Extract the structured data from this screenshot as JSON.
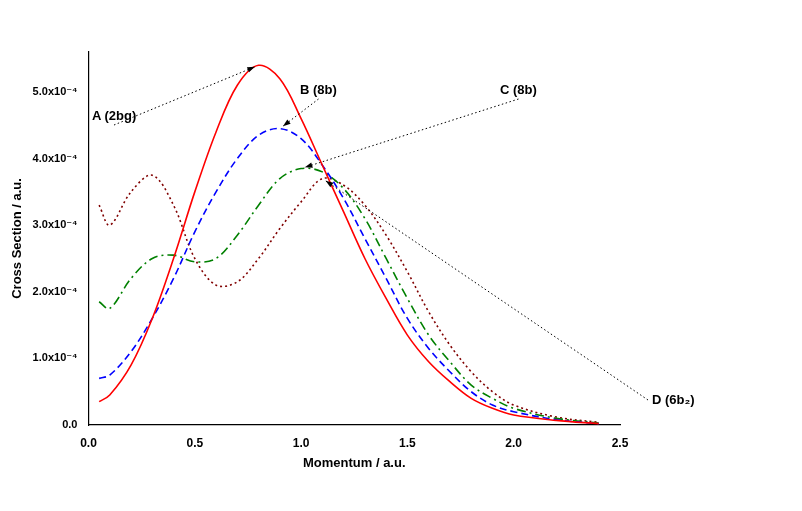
{
  "chart_data": {
    "type": "line",
    "x_label": "Momentum / a.u.",
    "y_label": "Cross Section / a.u.",
    "x": [
      0.05,
      0.1,
      0.2,
      0.3,
      0.4,
      0.5,
      0.6,
      0.7,
      0.8,
      0.9,
      1.0,
      1.1,
      1.2,
      1.3,
      1.4,
      1.5,
      1.6,
      1.7,
      1.8,
      1.9,
      2.0,
      2.2,
      2.4
    ],
    "series": [
      {
        "name": "A (2bg)",
        "color": "#ff0000",
        "line_style": "solid",
        "values": [
          3.5e-05,
          4.5e-05,
          9e-05,
          0.00016,
          0.00025,
          0.00035,
          0.00044,
          0.00051,
          0.00054,
          0.00052,
          0.00046,
          0.00039,
          0.00032,
          0.00025,
          0.00019,
          0.000135,
          9.5e-05,
          6.5e-05,
          4e-05,
          2.5e-05,
          1.5e-05,
          7e-06,
          2e-06
        ]
      },
      {
        "name": "B (8b)",
        "color": "#0000ff",
        "line_style": "dashed",
        "values": [
          7e-05,
          7.5e-05,
          0.00011,
          0.00016,
          0.00022,
          0.00029,
          0.00035,
          0.0004,
          0.000435,
          0.000445,
          0.00043,
          0.00039,
          0.00034,
          0.00028,
          0.00022,
          0.00016,
          0.000115,
          8e-05,
          5e-05,
          3e-05,
          2e-05,
          8e-06,
          2e-06
        ]
      },
      {
        "name": "C (8b)",
        "color": "#008000",
        "line_style": "dashdot",
        "values": [
          0.000185,
          0.000175,
          0.00022,
          0.00025,
          0.000255,
          0.000245,
          0.00025,
          0.000285,
          0.00033,
          0.00037,
          0.000385,
          0.00038,
          0.000355,
          0.00031,
          0.00025,
          0.00019,
          0.000135,
          9.5e-05,
          6e-05,
          4e-05,
          2.5e-05,
          1e-05,
          3e-06
        ]
      },
      {
        "name": "D (6b₂)",
        "color": "#800000",
        "line_style": "dotted",
        "values": [
          0.00033,
          0.0003,
          0.00035,
          0.000375,
          0.00033,
          0.00025,
          0.00021,
          0.000215,
          0.00025,
          0.000295,
          0.000335,
          0.00037,
          0.00036,
          0.00033,
          0.000285,
          0.00023,
          0.00017,
          0.00012,
          8e-05,
          5e-05,
          3e-05,
          1.2e-05,
          4e-06
        ]
      }
    ],
    "xlim": [
      0,
      2.5
    ],
    "xticks": [
      {
        "value": 0,
        "label": "0.0"
      },
      0.5,
      {
        "value": 1,
        "label": "1.0"
      },
      1.5,
      {
        "value": 2,
        "label": "2.0"
      },
      2.5
    ],
    "ylim": [
      0,
      0.00056
    ],
    "yticks": [
      {
        "value": 0,
        "label": "0.0"
      },
      {
        "value": 0.0001,
        "label": "1.0x10⁻⁴"
      },
      {
        "value": 0.0002,
        "label": "2.0x10⁻⁴"
      },
      {
        "value": 0.0003,
        "label": "3.0x10⁻⁴"
      },
      {
        "value": 0.0004,
        "label": "4.0x10⁻⁴"
      },
      {
        "value": 0.0005,
        "label": "5.0x10⁻⁴"
      }
    ],
    "grid": false
  }
}
